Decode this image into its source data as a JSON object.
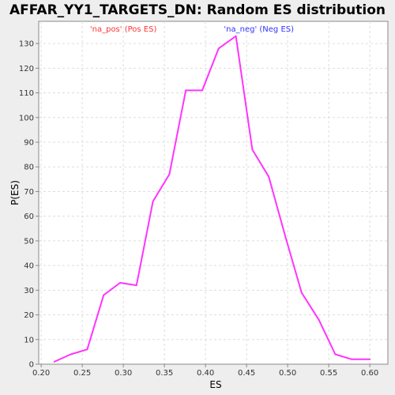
{
  "chart_data": {
    "type": "line",
    "title": "AFFAR_YY1_TARGETS_DN: Random ES distribution",
    "xlabel": "ES",
    "ylabel": "P(ES)",
    "xlim": [
      0.197,
      0.622
    ],
    "ylim": [
      0,
      139
    ],
    "xticks": [
      0.2,
      0.25,
      0.3,
      0.35,
      0.4,
      0.45,
      0.5,
      0.55,
      0.6
    ],
    "xtick_labels": [
      "0.20",
      "0.25",
      "0.30",
      "0.35",
      "0.40",
      "0.45",
      "0.50",
      "0.55",
      "0.60"
    ],
    "yticks": [
      0,
      10,
      20,
      30,
      40,
      50,
      60,
      70,
      80,
      90,
      100,
      110,
      120,
      130
    ],
    "ytick_labels": [
      "0",
      "10",
      "20",
      "30",
      "40",
      "50",
      "60",
      "70",
      "80",
      "90",
      "100",
      "110",
      "120",
      "130"
    ],
    "grid": true,
    "annotations": [
      {
        "text": "'na_pos' (Pos ES)",
        "color": "#ff3333",
        "x": 0.3
      },
      {
        "text": "'na_neg' (Neg ES)",
        "color": "#3333ff",
        "x": 0.465
      }
    ],
    "series": [
      {
        "color": "#ff33ff",
        "x": [
          0.216,
          0.236,
          0.256,
          0.276,
          0.296,
          0.316,
          0.336,
          0.356,
          0.376,
          0.396,
          0.416,
          0.437,
          0.457,
          0.477,
          0.497,
          0.517,
          0.538,
          0.558,
          0.578,
          0.6
        ],
        "y": [
          1,
          4,
          6,
          28,
          33,
          32,
          66,
          77,
          111,
          111,
          128,
          133,
          87,
          76,
          52,
          29,
          18,
          4,
          2,
          2
        ]
      }
    ]
  }
}
